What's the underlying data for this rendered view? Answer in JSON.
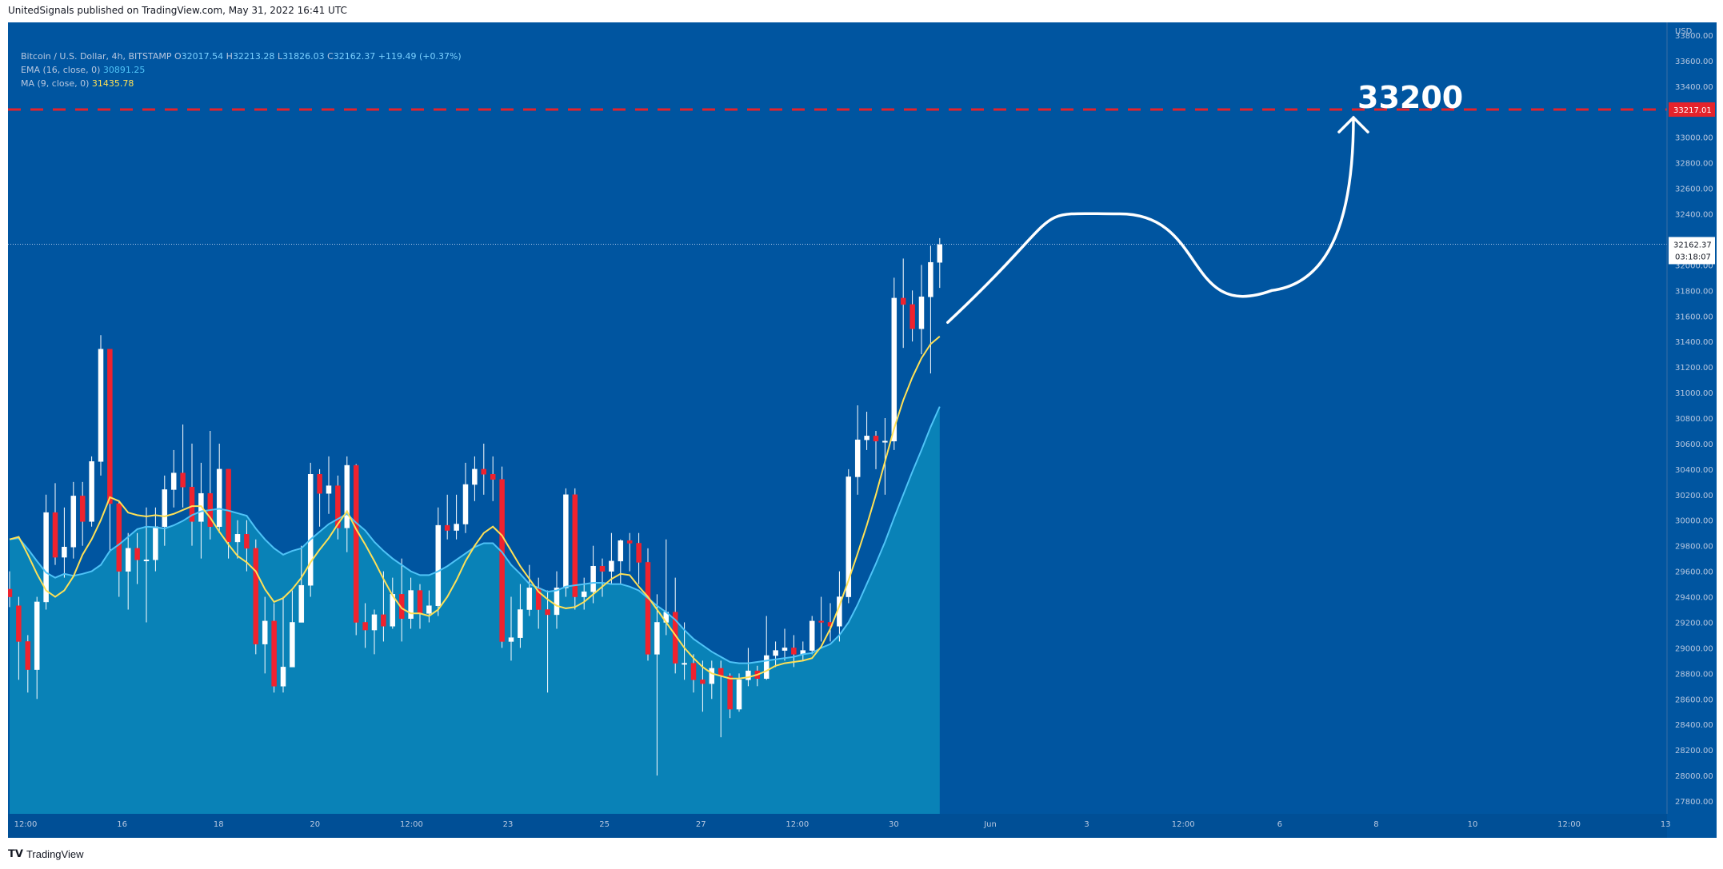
{
  "header": {
    "published": "UnitedSignals published on TradingView.com, May 31, 2022 16:41 UTC"
  },
  "legend": {
    "symbol": "Bitcoin / U.S. Dollar, 4h, BITSTAMP",
    "o_label": "O",
    "o_value": "32017.54",
    "h_label": "H",
    "h_value": "32213.28",
    "l_label": "L",
    "l_value": "31826.03",
    "c_label": "C",
    "c_value": "32162.37",
    "change": "+119.49 (+0.37%)",
    "ema_label": "EMA (16, close, 0)",
    "ema_value": "30891.25",
    "ma_label": "MA (9, close, 0)",
    "ma_value": "31435.78"
  },
  "axis": {
    "currency": "USD",
    "price_ticks": [
      "33800.00",
      "33600.00",
      "33400.00",
      "33200.00",
      "33000.00",
      "32800.00",
      "32600.00",
      "32400.00",
      "32200.00",
      "32000.00",
      "31800.00",
      "31600.00",
      "31400.00",
      "31200.00",
      "31000.00",
      "30800.00",
      "30600.00",
      "30400.00",
      "30200.00",
      "30000.00",
      "29800.00",
      "29600.00",
      "29400.00",
      "29200.00",
      "29000.00",
      "28800.00",
      "28600.00",
      "28400.00",
      "28200.00",
      "28000.00",
      "27800.00"
    ],
    "time_ticks": [
      "12:00",
      "16",
      "18",
      "20",
      "12:00",
      "23",
      "25",
      "27",
      "12:00",
      "30",
      "Jun",
      "3",
      "12:00",
      "6",
      "8",
      "10",
      "12:00",
      "13"
    ]
  },
  "price_labels": {
    "target_price": "33217.01",
    "current_price": "32162.37",
    "countdown": "03:18:07"
  },
  "annotation": {
    "target_text": "33200"
  },
  "footer": {
    "brand": "TradingView"
  },
  "colors": {
    "background": "#0055a0",
    "up_candle": "#ffffff",
    "down_candle": "#f0222e",
    "ema": "#4fc3f7",
    "ma": "#ffe156",
    "area_fill": "#0a85b8",
    "target_line": "#e5232b"
  },
  "chart_data": {
    "type": "candlestick",
    "interval": "4h",
    "ylim": [
      27700,
      33900
    ],
    "target_level": 33217.01,
    "current_level": 32162.37,
    "candles": [
      [
        29460,
        29400,
        29600,
        29320
      ],
      [
        29330,
        29050,
        29400,
        28750
      ],
      [
        29050,
        28830,
        29100,
        28650
      ],
      [
        28830,
        29360,
        29400,
        28600
      ],
      [
        29360,
        30060,
        30200,
        29300
      ],
      [
        30060,
        29710,
        30290,
        29650
      ],
      [
        29710,
        29790,
        30100,
        29550
      ],
      [
        29790,
        30190,
        30300,
        29700
      ],
      [
        30190,
        29990,
        30300,
        29800
      ],
      [
        29990,
        30460,
        30500,
        29950
      ],
      [
        30460,
        31340,
        31450,
        30350
      ],
      [
        31340,
        30130,
        31330,
        29750
      ],
      [
        30130,
        29600,
        30150,
        29400
      ],
      [
        29600,
        29780,
        29900,
        29300
      ],
      [
        29780,
        29690,
        29900,
        29500
      ],
      [
        29690,
        29690,
        30100,
        29200
      ],
      [
        29690,
        29950,
        30100,
        29600
      ],
      [
        29950,
        30240,
        30350,
        29800
      ],
      [
        30240,
        30370,
        30550,
        30100
      ],
      [
        30370,
        30260,
        30750,
        30100
      ],
      [
        30260,
        29990,
        30600,
        29800
      ],
      [
        29990,
        30210,
        30450,
        29700
      ],
      [
        30210,
        29950,
        30700,
        29850
      ],
      [
        29950,
        30400,
        30600,
        29900
      ],
      [
        30400,
        29830,
        30400,
        29700
      ],
      [
        29830,
        29890,
        30000,
        29700
      ],
      [
        29890,
        29780,
        30000,
        29600
      ],
      [
        29780,
        29030,
        29850,
        28950
      ],
      [
        29030,
        29210,
        29400,
        28800
      ],
      [
        29210,
        28700,
        29350,
        28650
      ],
      [
        28700,
        28850,
        29400,
        28650
      ],
      [
        28850,
        29200,
        29450,
        29100
      ],
      [
        29200,
        29490,
        29800,
        29350
      ],
      [
        29490,
        30360,
        30450,
        29400
      ],
      [
        30360,
        30210,
        30400,
        29950
      ],
      [
        30210,
        30270,
        30500,
        30050
      ],
      [
        30270,
        29940,
        30350,
        29850
      ],
      [
        29940,
        30430,
        30500,
        29750
      ],
      [
        30430,
        29200,
        30440,
        29100
      ],
      [
        29200,
        29140,
        29350,
        29000
      ],
      [
        29140,
        29260,
        29300,
        28950
      ],
      [
        29260,
        29170,
        29600,
        29050
      ],
      [
        29170,
        29420,
        29550,
        29150
      ],
      [
        29420,
        29230,
        29700,
        29050
      ],
      [
        29230,
        29450,
        29550,
        29150
      ],
      [
        29450,
        29270,
        29500,
        29150
      ],
      [
        29270,
        29330,
        29450,
        29200
      ],
      [
        29330,
        29960,
        30100,
        29250
      ],
      [
        29960,
        29920,
        30200,
        29850
      ],
      [
        29920,
        29970,
        30200,
        29850
      ],
      [
        29970,
        30280,
        30450,
        29900
      ],
      [
        30280,
        30400,
        30500,
        30150
      ],
      [
        30400,
        30360,
        30600,
        30200
      ],
      [
        30360,
        30320,
        30500,
        30150
      ],
      [
        30320,
        29050,
        30420,
        29000
      ],
      [
        29050,
        29080,
        29400,
        28900
      ],
      [
        29080,
        29300,
        29500,
        29000
      ],
      [
        29300,
        29470,
        29650,
        29250
      ],
      [
        29470,
        29300,
        29550,
        29150
      ],
      [
        29300,
        29260,
        29450,
        28650
      ],
      [
        29260,
        29470,
        29600,
        29150
      ],
      [
        29470,
        30200,
        30250,
        29400
      ],
      [
        30200,
        29400,
        30250,
        29300
      ],
      [
        29400,
        29440,
        29550,
        29300
      ],
      [
        29440,
        29640,
        29800,
        29350
      ],
      [
        29640,
        29600,
        29700,
        29400
      ],
      [
        29600,
        29680,
        29900,
        29500
      ],
      [
        29680,
        29840,
        29850,
        29500
      ],
      [
        29840,
        29820,
        29900,
        29600
      ],
      [
        29820,
        29670,
        29900,
        29500
      ],
      [
        29670,
        28950,
        29780,
        28900
      ],
      [
        28950,
        29200,
        29420,
        28000
      ],
      [
        29200,
        29280,
        29850,
        29100
      ],
      [
        29280,
        28880,
        29550,
        28800
      ],
      [
        28880,
        28880,
        29200,
        28750
      ],
      [
        28880,
        28750,
        28950,
        28650
      ],
      [
        28750,
        28720,
        28900,
        28500
      ],
      [
        28720,
        28840,
        28900,
        28600
      ],
      [
        28840,
        28780,
        28900,
        28300
      ],
      [
        28780,
        28520,
        28800,
        28450
      ],
      [
        28520,
        28750,
        28800,
        28500
      ],
      [
        28750,
        28820,
        29000,
        28700
      ],
      [
        28820,
        28760,
        28860,
        28700
      ],
      [
        28760,
        28940,
        29250,
        28750
      ],
      [
        28940,
        28980,
        29050,
        28850
      ],
      [
        28980,
        29000,
        29150,
        28900
      ],
      [
        29000,
        28950,
        29100,
        28850
      ],
      [
        28950,
        28980,
        29050,
        28900
      ],
      [
        28980,
        29210,
        29250,
        28950
      ],
      [
        29210,
        29200,
        29400,
        29050
      ],
      [
        29200,
        29170,
        29350,
        29050
      ],
      [
        29170,
        29400,
        29600,
        29050
      ],
      [
        29400,
        30340,
        30400,
        29350
      ],
      [
        30340,
        30630,
        30900,
        30200
      ],
      [
        30630,
        30660,
        30850,
        30550
      ],
      [
        30660,
        30620,
        30700,
        30400
      ],
      [
        30620,
        30620,
        30800,
        30200
      ],
      [
        30620,
        31740,
        31900,
        30550
      ],
      [
        31740,
        31690,
        32050,
        31350
      ],
      [
        31690,
        31500,
        31800,
        31400
      ],
      [
        31500,
        31750,
        32000,
        31300
      ],
      [
        31750,
        32020,
        32150,
        31150
      ],
      [
        32020,
        32160,
        32210,
        31820
      ]
    ],
    "ema": [
      29850,
      29860,
      29775,
      29680,
      29590,
      29550,
      29580,
      29565,
      29580,
      29600,
      29650,
      29760,
      29810,
      29870,
      29930,
      29950,
      29945,
      29935,
      29960,
      29995,
      30040,
      30070,
      30080,
      30090,
      30075,
      30055,
      30035,
      29935,
      29850,
      29780,
      29730,
      29760,
      29780,
      29850,
      29910,
      29970,
      30010,
      30050,
      29980,
      29920,
      29830,
      29760,
      29700,
      29650,
      29600,
      29570,
      29570,
      29600,
      29640,
      29690,
      29740,
      29790,
      29820,
      29820,
      29750,
      29650,
      29580,
      29500,
      29470,
      29440,
      29450,
      29480,
      29490,
      29500,
      29510,
      29510,
      29500,
      29500,
      29480,
      29450,
      29390,
      29330,
      29280,
      29220,
      29140,
      29070,
      29020,
      28970,
      28930,
      28890,
      28880,
      28880,
      28890,
      28900,
      28910,
      28920,
      28930,
      28950,
      28960,
      29000,
      29030,
      29100,
      29200,
      29340,
      29500,
      29660,
      29830,
      30020,
      30200,
      30380,
      30550,
      30730,
      30890
    ],
    "ma": [
      29850,
      29870,
      29730,
      29580,
      29450,
      29400,
      29450,
      29560,
      29730,
      29850,
      30000,
      30180,
      30150,
      30060,
      30040,
      30030,
      30040,
      30030,
      30050,
      30080,
      30110,
      30110,
      30020,
      29910,
      29810,
      29720,
      29670,
      29600,
      29460,
      29360,
      29390,
      29460,
      29550,
      29670,
      29770,
      29860,
      29970,
      30070,
      29930,
      29810,
      29680,
      29540,
      29410,
      29310,
      29270,
      29270,
      29250,
      29300,
      29400,
      29530,
      29680,
      29800,
      29900,
      29950,
      29880,
      29760,
      29640,
      29540,
      29440,
      29380,
      29330,
      29310,
      29320,
      29360,
      29420,
      29480,
      29540,
      29580,
      29570,
      29480,
      29400,
      29300,
      29200,
      29100,
      29000,
      28920,
      28850,
      28800,
      28780,
      28760,
      28760,
      28770,
      28790,
      28820,
      28860,
      28880,
      28890,
      28900,
      28920,
      29010,
      29150,
      29330,
      29530,
      29740,
      29960,
      30200,
      30460,
      30720,
      30940,
      31120,
      31270,
      31380,
      31440
    ],
    "forecast_path": [
      "from current price near 31500",
      "peak near 32400",
      "dip near 31800",
      "rise to 33200"
    ]
  }
}
